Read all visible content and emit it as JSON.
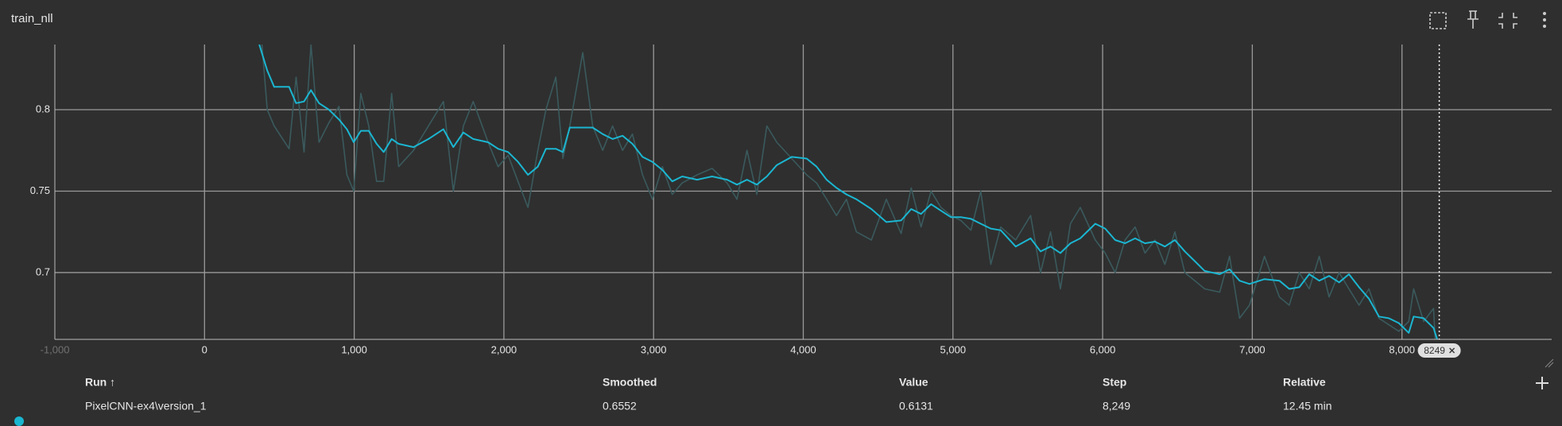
{
  "chart_data": {
    "type": "line",
    "title": "train_nll",
    "x": [
      366,
      419,
      465,
      565,
      612,
      665,
      711,
      765,
      831,
      898,
      951,
      997,
      1044,
      1097,
      1150,
      1197,
      1250,
      1297,
      1396,
      1496,
      1596,
      1662,
      1729,
      1795,
      1895,
      1961,
      2028,
      2094,
      2161,
      2227,
      2281,
      2347,
      2394,
      2440,
      2527,
      2593,
      2660,
      2726,
      2793,
      2859,
      2926,
      2992,
      3059,
      3125,
      3191,
      3291,
      3391,
      3491,
      3557,
      3624,
      3690,
      3757,
      3823,
      3923,
      4023,
      4089,
      4156,
      4222,
      4289,
      4355,
      4455,
      4555,
      4654,
      4721,
      4787,
      4854,
      4920,
      4987,
      5053,
      5120,
      5186,
      5253,
      5319,
      5419,
      5519,
      5585,
      5652,
      5718,
      5785,
      5851,
      5951,
      6017,
      6084,
      6150,
      6217,
      6283,
      6350,
      6416,
      6483,
      6549,
      6616,
      6682,
      6782,
      6848,
      6915,
      6981,
      7081,
      7181,
      7247,
      7314,
      7380,
      7447,
      7513,
      7580,
      7646,
      7713,
      7779,
      7846,
      7912,
      7979,
      8045,
      8078,
      8145,
      8211,
      8249
    ],
    "series": [
      {
        "color": "#3a5a5d",
        "values": [
          0.86,
          0.8,
          0.79,
          0.776,
          0.82,
          0.774,
          0.84,
          0.78,
          0.792,
          0.802,
          0.76,
          0.75,
          0.81,
          0.79,
          0.756,
          0.756,
          0.81,
          0.765,
          0.775,
          0.79,
          0.805,
          0.75,
          0.79,
          0.805,
          0.78,
          0.765,
          0.772,
          0.756,
          0.74,
          0.775,
          0.8,
          0.82,
          0.77,
          0.79,
          0.835,
          0.79,
          0.775,
          0.79,
          0.775,
          0.785,
          0.76,
          0.745,
          0.765,
          0.748,
          0.755,
          0.76,
          0.764,
          0.755,
          0.745,
          0.775,
          0.748,
          0.79,
          0.78,
          0.77,
          0.76,
          0.755,
          0.745,
          0.735,
          0.745,
          0.725,
          0.72,
          0.745,
          0.724,
          0.752,
          0.728,
          0.75,
          0.74,
          0.735,
          0.732,
          0.726,
          0.75,
          0.705,
          0.728,
          0.72,
          0.735,
          0.7,
          0.725,
          0.69,
          0.73,
          0.74,
          0.72,
          0.712,
          0.7,
          0.72,
          0.728,
          0.712,
          0.72,
          0.705,
          0.725,
          0.7,
          0.695,
          0.69,
          0.688,
          0.71,
          0.672,
          0.68,
          0.71,
          0.685,
          0.68,
          0.7,
          0.69,
          0.71,
          0.685,
          0.7,
          0.69,
          0.68,
          0.69,
          0.672,
          0.668,
          0.664,
          0.67,
          0.69,
          0.67,
          0.678,
          0.6131
        ]
      },
      {
        "color": "#1bb6d1",
        "values": [
          0.84,
          0.824,
          0.814,
          0.814,
          0.804,
          0.805,
          0.812,
          0.804,
          0.8,
          0.794,
          0.788,
          0.78,
          0.787,
          0.787,
          0.779,
          0.774,
          0.782,
          0.779,
          0.777,
          0.782,
          0.788,
          0.777,
          0.786,
          0.782,
          0.78,
          0.776,
          0.774,
          0.768,
          0.76,
          0.765,
          0.776,
          0.776,
          0.774,
          0.789,
          0.789,
          0.789,
          0.785,
          0.782,
          0.784,
          0.779,
          0.771,
          0.768,
          0.763,
          0.756,
          0.759,
          0.757,
          0.759,
          0.757,
          0.754,
          0.757,
          0.754,
          0.759,
          0.766,
          0.771,
          0.77,
          0.765,
          0.757,
          0.752,
          0.748,
          0.745,
          0.739,
          0.731,
          0.732,
          0.739,
          0.736,
          0.742,
          0.738,
          0.734,
          0.734,
          0.733,
          0.73,
          0.727,
          0.726,
          0.716,
          0.721,
          0.713,
          0.716,
          0.712,
          0.718,
          0.721,
          0.73,
          0.727,
          0.72,
          0.718,
          0.721,
          0.718,
          0.719,
          0.716,
          0.72,
          0.713,
          0.707,
          0.701,
          0.699,
          0.702,
          0.695,
          0.693,
          0.696,
          0.695,
          0.69,
          0.691,
          0.699,
          0.695,
          0.698,
          0.694,
          0.699,
          0.691,
          0.684,
          0.673,
          0.672,
          0.669,
          0.663,
          0.673,
          0.672,
          0.666,
          0.6552
        ]
      }
    ],
    "xlim": [
      -1000,
      9000
    ],
    "xticks": [
      {
        "value": -1000,
        "label": "-1,000"
      },
      0,
      {
        "value": 1000,
        "label": "1,000"
      },
      {
        "value": 2000,
        "label": "2,000"
      },
      {
        "value": 3000,
        "label": "3,000"
      },
      {
        "value": 4000,
        "label": "4,000"
      },
      {
        "value": 5000,
        "label": "5,000"
      },
      {
        "value": 6000,
        "label": "6,000"
      },
      {
        "value": 7000,
        "label": "7,000"
      },
      {
        "value": 8000,
        "label": "8,000"
      }
    ],
    "ylim": [
      0.659,
      0.84
    ],
    "yticks": [
      0.7,
      0.75,
      0.8
    ],
    "grid": true
  },
  "table": {
    "headers": [
      "Run ↑",
      "Smoothed",
      "Value",
      "Step",
      "Relative"
    ],
    "rows": [
      [
        "PixelCNN-ex4\\version_1",
        "0.6552",
        "0.6131",
        "8,249",
        "12.45 min"
      ]
    ]
  }
}
